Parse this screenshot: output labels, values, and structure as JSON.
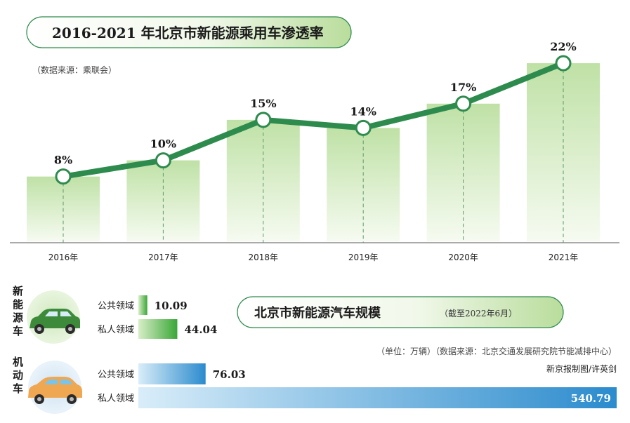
{
  "colors": {
    "line": "#2e8b4e",
    "bar_top": "#bfe1a6",
    "bar_bottom": "#f4faee",
    "green_bar": "#3faa3c",
    "blue_bar": "#2d8fd0",
    "pill_stroke": "#2e8b4e"
  },
  "chart_data": [
    {
      "type": "bar+line",
      "title": "2016-2021 年北京市新能源乘用车渗透率",
      "source": "（数据来源：乘联会）",
      "categories": [
        "2016年",
        "2017年",
        "2018年",
        "2019年",
        "2020年",
        "2021年"
      ],
      "values": [
        8,
        10,
        15,
        14,
        17,
        22
      ],
      "value_labels": [
        "8%",
        "10%",
        "15%",
        "14%",
        "17%",
        "22%"
      ],
      "unit": "%",
      "ylim": [
        0,
        24
      ]
    },
    {
      "type": "bar",
      "orientation": "horizontal",
      "title": "北京市新能源汽车规模",
      "as_of": "（截至2022年6月）",
      "unit_note": "（单位：万辆）（数据来源：北京交通发展研究院节能减排中心）",
      "credit": "新京报制图/许英剑",
      "groups": [
        {
          "name": "新能源车",
          "icon": "green-car-icon",
          "items": [
            {
              "label": "公共领域",
              "value": 10.09,
              "value_label": "10.09"
            },
            {
              "label": "私人领域",
              "value": 44.04,
              "value_label": "44.04"
            }
          ]
        },
        {
          "name": "机动车",
          "icon": "orange-car-icon",
          "items": [
            {
              "label": "公共领域",
              "value": 76.03,
              "value_label": "76.03"
            },
            {
              "label": "私人领域",
              "value": 540.79,
              "value_label": "540.79"
            }
          ]
        }
      ]
    }
  ]
}
